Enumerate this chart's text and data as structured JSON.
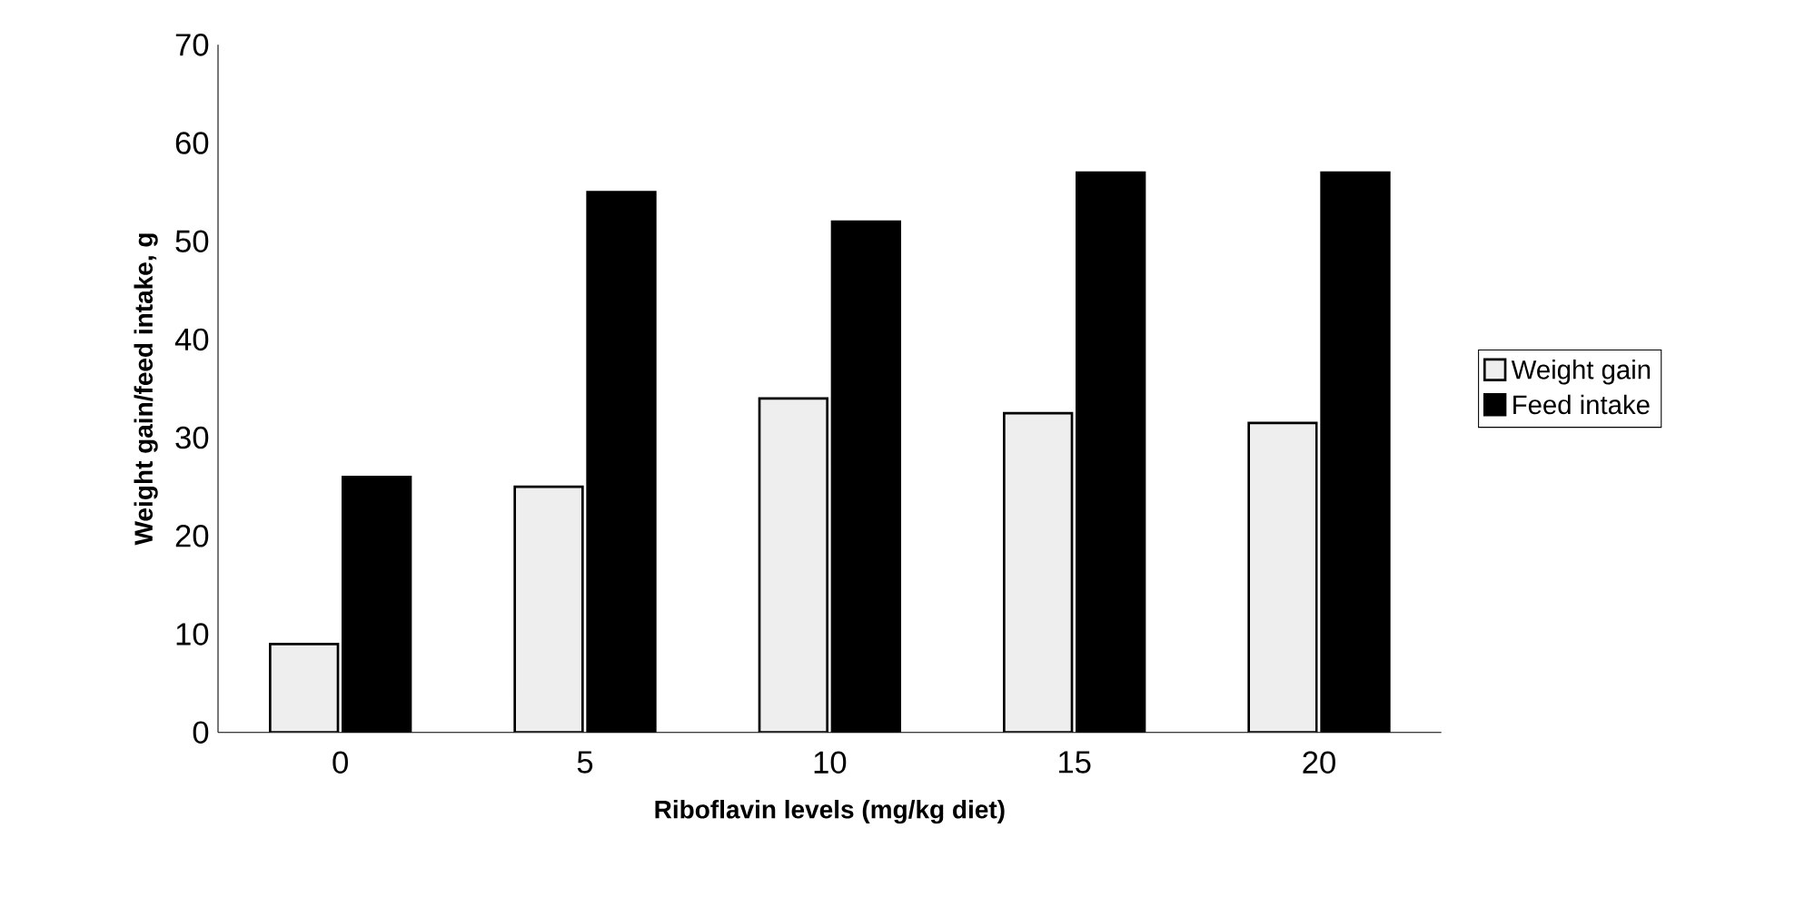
{
  "chart_data": {
    "type": "bar",
    "xlabel": "Riboflavin levels (mg/kg diet)",
    "ylabel": "Weight gain/feed intake, g",
    "categories": [
      "0",
      "5",
      "10",
      "15",
      "20"
    ],
    "series": [
      {
        "name": "Weight gain",
        "color": "#eeeeee",
        "values": [
          9,
          25,
          34,
          32.5,
          31.5
        ]
      },
      {
        "name": "Feed intake",
        "color": "#000000",
        "values": [
          26,
          55,
          52,
          57,
          57
        ]
      }
    ],
    "ylim": [
      0,
      70
    ],
    "yticks": [
      0,
      10,
      20,
      30,
      40,
      50,
      60,
      70
    ],
    "legend": "right"
  }
}
